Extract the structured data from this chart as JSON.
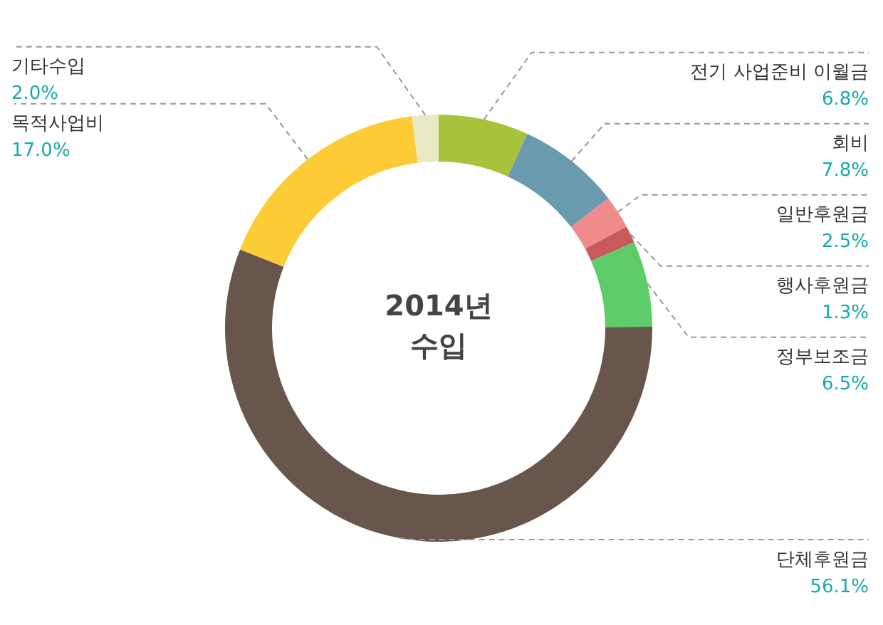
{
  "chart_data": {
    "type": "donut",
    "title": "2014년 수입",
    "categories": [
      "전기 사업준비 이월금",
      "회비",
      "일반후원금",
      "행사후원금",
      "정부보조금",
      "단체후원금",
      "목적사업비",
      "기타수입"
    ],
    "values": [
      6.8,
      7.8,
      2.5,
      1.3,
      6.5,
      56.1,
      17.0,
      2.0
    ],
    "value_labels": [
      "6.8%",
      "7.8%",
      "2.5%",
      "1.3%",
      "6.5%",
      "56.1%",
      "17.0%",
      "2.0%"
    ],
    "colors": [
      "#a8c23c",
      "#6a9aae",
      "#f08b8b",
      "#c85a5c",
      "#5ccd68",
      "#68564c",
      "#fccb35",
      "#e9e9c3"
    ],
    "legend": false
  }
}
